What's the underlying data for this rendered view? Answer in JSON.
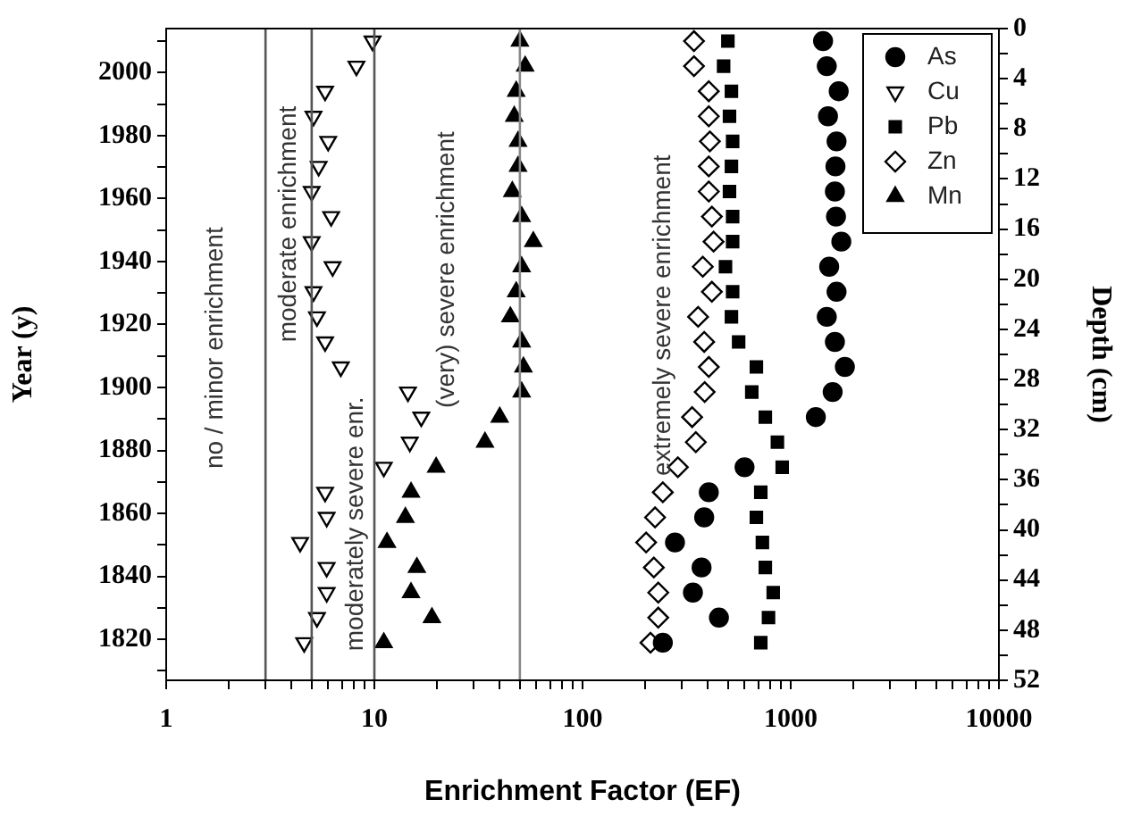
{
  "chart_data": {
    "type": "scatter",
    "xlabel": "Enrichment Factor (EF)",
    "ylabel": "Year (y)",
    "y2label": "Depth (cm)",
    "log": "x",
    "grid": false,
    "legend": "top right",
    "xlim": [
      1,
      10000
    ],
    "xticks": [
      1,
      {
        "value": 2,
        "label": null
      },
      {
        "value": 3,
        "label": null
      },
      {
        "value": 4,
        "label": null
      },
      {
        "value": 5,
        "label": null
      },
      {
        "value": 6,
        "label": null
      },
      {
        "value": 7,
        "label": null
      },
      {
        "value": 8,
        "label": null
      },
      {
        "value": 9,
        "label": null
      },
      10,
      {
        "value": 20,
        "label": null
      },
      {
        "value": 30,
        "label": null
      },
      {
        "value": 40,
        "label": null
      },
      {
        "value": 50,
        "label": null
      },
      {
        "value": 60,
        "label": null
      },
      {
        "value": 70,
        "label": null
      },
      {
        "value": 80,
        "label": null
      },
      {
        "value": 90,
        "label": null
      },
      100,
      {
        "value": 200,
        "label": null
      },
      {
        "value": 300,
        "label": null
      },
      {
        "value": 400,
        "label": null
      },
      {
        "value": 500,
        "label": null
      },
      {
        "value": 600,
        "label": null
      },
      {
        "value": 700,
        "label": null
      },
      {
        "value": 800,
        "label": null
      },
      {
        "value": 900,
        "label": null
      },
      1000,
      {
        "value": 2000,
        "label": null
      },
      {
        "value": 3000,
        "label": null
      },
      {
        "value": 4000,
        "label": null
      },
      {
        "value": 5000,
        "label": null
      },
      {
        "value": 6000,
        "label": null
      },
      {
        "value": 7000,
        "label": null
      },
      {
        "value": 8000,
        "label": null
      },
      {
        "value": 9000,
        "label": null
      },
      10000
    ],
    "ylim": [
      1807,
      2014
    ],
    "yticks": [
      {
        "value": 1810,
        "label": null
      },
      1820,
      {
        "value": 1830,
        "label": null
      },
      1840,
      {
        "value": 1850,
        "label": null
      },
      1860,
      {
        "value": 1870,
        "label": null
      },
      1880,
      {
        "value": 1890,
        "label": null
      },
      1900,
      {
        "value": 1910,
        "label": null
      },
      1920,
      {
        "value": 1930,
        "label": null
      },
      1940,
      {
        "value": 1950,
        "label": null
      },
      1960,
      {
        "value": 1970,
        "label": null
      },
      1980,
      {
        "value": 1990,
        "label": null
      },
      2000,
      {
        "value": 2010,
        "label": null
      }
    ],
    "y2lim": [
      52,
      0
    ],
    "y2ticks": [
      0,
      {
        "value": 2,
        "label": null
      },
      4,
      {
        "value": 6,
        "label": null
      },
      8,
      {
        "value": 10,
        "label": null
      },
      12,
      {
        "value": 14,
        "label": null
      },
      16,
      {
        "value": 18,
        "label": null
      },
      20,
      {
        "value": 22,
        "label": null
      },
      24,
      {
        "value": 26,
        "label": null
      },
      28,
      {
        "value": 30,
        "label": null
      },
      32,
      {
        "value": 34,
        "label": null
      },
      36,
      {
        "value": 38,
        "label": null
      },
      40,
      {
        "value": 42,
        "label": null
      },
      44,
      {
        "value": 46,
        "label": null
      },
      48,
      {
        "value": 50,
        "label": null
      },
      52
    ],
    "ref_lines": [
      {
        "axis": "x",
        "value": 3,
        "color": "#555555"
      },
      {
        "axis": "x",
        "value": 5,
        "color": "#555555"
      },
      {
        "axis": "x",
        "value": 10,
        "color": "#555555"
      },
      {
        "axis": "x",
        "value": 50,
        "color": "#888888"
      }
    ],
    "annotations": [
      "no / minor enrichment",
      "moderate enrichment",
      "moderately severe enr.",
      "(very) severe enrichment",
      "extremely severe enrichment"
    ],
    "series": [
      {
        "name": "As",
        "color": "#000000",
        "marker": "circle",
        "axis": "y2",
        "x": [
          1430,
          1490,
          1700,
          1510,
          1660,
          1640,
          1630,
          1650,
          1750,
          1530,
          1660,
          1490,
          1630,
          1820,
          1590,
          1320,
          600,
          404,
          384,
          278,
          373,
          339,
          452,
          243
        ],
        "values": [
          1,
          3,
          5,
          7,
          9,
          11,
          13,
          15,
          17,
          19,
          21,
          23,
          25,
          27,
          29,
          31,
          35,
          37,
          39,
          41,
          43,
          45,
          47,
          49
        ]
      },
      {
        "name": "Cu",
        "color": "#000000",
        "marker": "triangle-down-open",
        "axis": "y2",
        "x": [
          9.8,
          8.2,
          5.8,
          5.1,
          6.0,
          5.4,
          5.0,
          6.2,
          5.0,
          6.3,
          5.1,
          5.3,
          5.8,
          6.9,
          14.5,
          16.8,
          14.8,
          11.1,
          5.8,
          5.9,
          4.4,
          5.9,
          5.9,
          5.3,
          4.6
        ],
        "values": [
          1,
          3,
          5,
          7,
          9,
          11,
          13,
          15,
          17,
          19,
          21,
          23,
          25,
          27,
          29,
          31,
          33,
          35,
          37,
          39,
          41,
          43,
          45,
          47,
          49
        ]
      },
      {
        "name": "Pb",
        "color": "#000000",
        "marker": "square",
        "axis": "y2",
        "x": [
          499,
          476,
          519,
          508,
          526,
          519,
          508,
          526,
          526,
          486,
          526,
          519,
          562,
          684,
          650,
          755,
          863,
          910,
          718,
          684,
          731,
          755,
          824,
          782,
          718
        ],
        "values": [
          1,
          3,
          5,
          7,
          9,
          11,
          13,
          15,
          17,
          19,
          21,
          23,
          25,
          27,
          29,
          31,
          33,
          35,
          37,
          39,
          41,
          43,
          45,
          47,
          49
        ]
      },
      {
        "name": "Zn",
        "color": "#000000",
        "marker": "diamond-open",
        "axis": "y2",
        "x": [
          343,
          343,
          404,
          404,
          409,
          404,
          404,
          418,
          426,
          378,
          418,
          359,
          384,
          404,
          386,
          336,
          350,
          287,
          243,
          223,
          202,
          220,
          231,
          231,
          212
        ],
        "values": [
          1,
          3,
          5,
          7,
          9,
          11,
          13,
          15,
          17,
          19,
          21,
          23,
          25,
          27,
          29,
          31,
          33,
          35,
          37,
          39,
          41,
          43,
          45,
          47,
          49
        ]
      },
      {
        "name": "Mn",
        "color": "#000000",
        "marker": "triangle",
        "axis": "y2",
        "x": [
          50,
          53,
          48,
          47,
          49,
          49,
          46,
          51,
          58,
          51,
          48,
          45,
          51,
          52,
          51,
          40,
          34,
          19.8,
          15.0,
          14.1,
          11.5,
          16.0,
          15.0,
          18.9,
          11.1
        ],
        "values": [
          1,
          3,
          5,
          7,
          9,
          11,
          13,
          15,
          17,
          19,
          21,
          23,
          25,
          27,
          29,
          31,
          33,
          35,
          37,
          39,
          41,
          43,
          45,
          47,
          49
        ]
      }
    ]
  }
}
